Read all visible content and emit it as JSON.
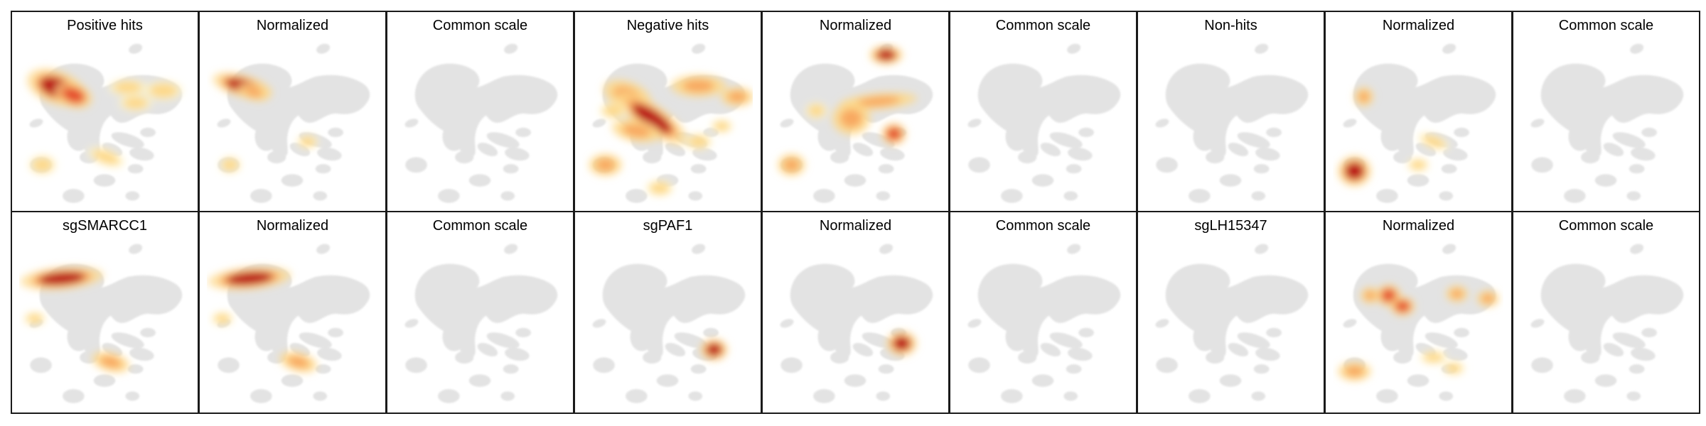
{
  "figure": {
    "rows": [
      {
        "panels": [
          {
            "title": "Positive hits",
            "map": "pos",
            "norm": false
          },
          {
            "title": "Normalized",
            "map": "pos",
            "norm": true
          },
          {
            "title": "Common scale",
            "map": "none",
            "norm": false
          },
          {
            "title": "Negative hits",
            "map": "neg",
            "norm": false
          },
          {
            "title": "Normalized",
            "map": "neg",
            "norm": true
          },
          {
            "title": "Common scale",
            "map": "none",
            "norm": false
          },
          {
            "title": "Non-hits",
            "map": "none",
            "norm": false
          },
          {
            "title": "Normalized",
            "map": "nonhits",
            "norm": true
          },
          {
            "title": "Common scale",
            "map": "none",
            "norm": false
          }
        ]
      },
      {
        "panels": [
          {
            "title": "sgSMARCC1",
            "map": "smarcc1",
            "norm": false
          },
          {
            "title": "Normalized",
            "map": "smarcc1",
            "norm": true
          },
          {
            "title": "Common scale",
            "map": "none",
            "norm": false
          },
          {
            "title": "sgPAF1",
            "map": "paf1",
            "norm": false
          },
          {
            "title": "Normalized",
            "map": "paf1",
            "norm": true
          },
          {
            "title": "Common scale",
            "map": "none",
            "norm": false
          },
          {
            "title": "sgLH15347",
            "map": "none",
            "norm": false
          },
          {
            "title": "Normalized",
            "map": "lh15347",
            "norm": true
          },
          {
            "title": "Common scale",
            "map": "none",
            "norm": false
          }
        ]
      }
    ],
    "colors": {
      "cells": "#e3e3e3",
      "density": [
        "#fff5c8",
        "#fdd88a",
        "#f7a35c",
        "#e2452a",
        "#b3000c"
      ]
    }
  }
}
